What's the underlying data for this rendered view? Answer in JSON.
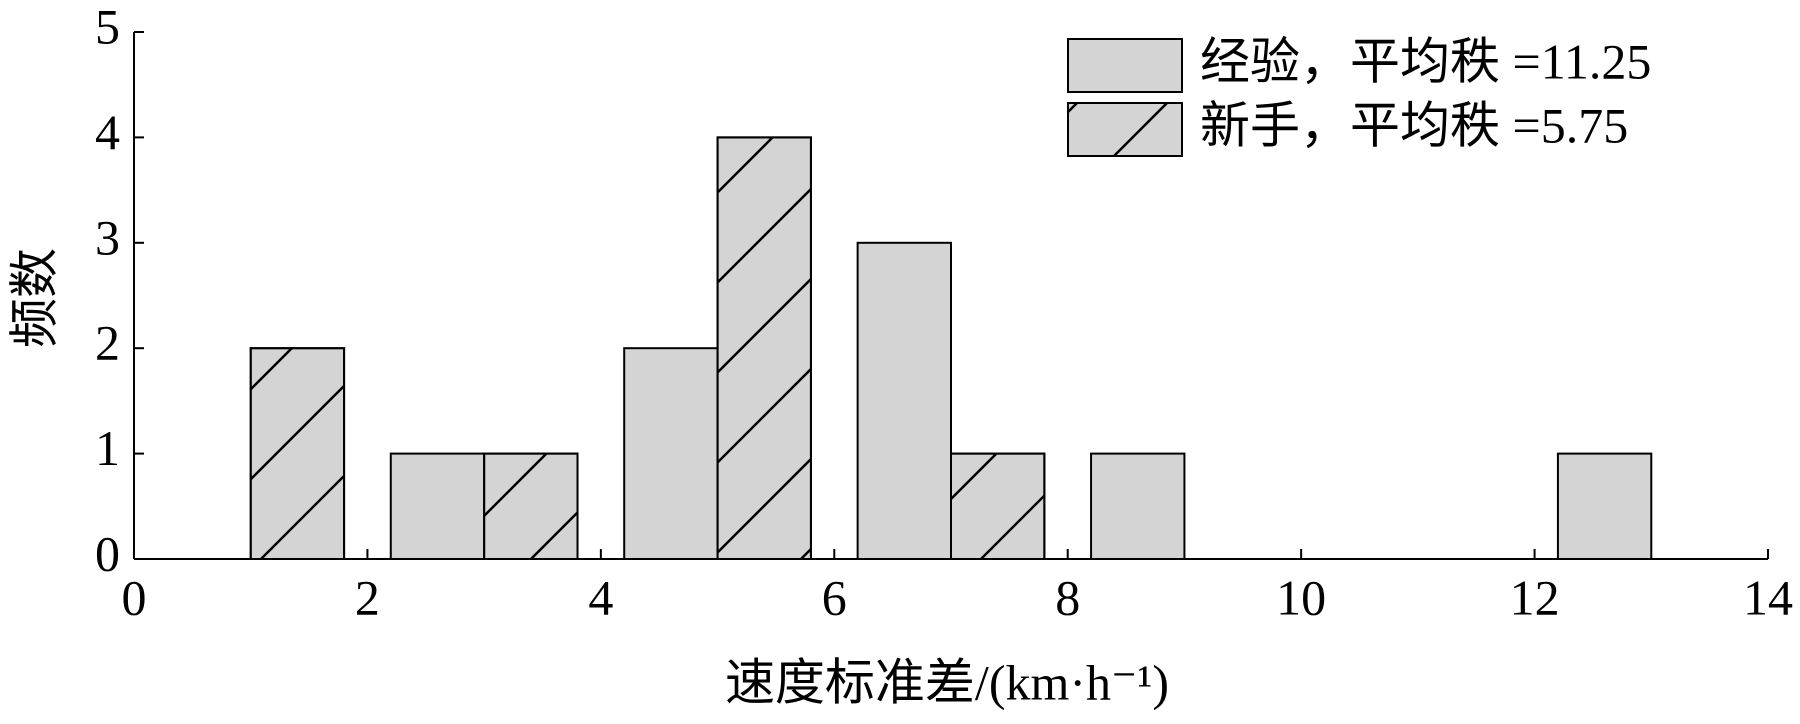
{
  "chart_data": {
    "type": "bar",
    "xlabel": "速度标准差/(km·h⁻¹)",
    "ylabel": "频数",
    "series": [
      {
        "name": "经验，平均秩 =11.25",
        "color": "#d4d4d4",
        "hatch": false,
        "x": [
          2.6,
          4.6,
          6.6,
          8.6,
          12.6
        ],
        "values": [
          1,
          2,
          3,
          1,
          1
        ]
      },
      {
        "name": "新手，平均秩 =5.75",
        "color": "#d4d4d4",
        "hatch": true,
        "x": [
          1.4,
          3.4,
          5.4,
          7.4
        ],
        "values": [
          2,
          1,
          4,
          1
        ]
      }
    ],
    "xlim": [
      0,
      14
    ],
    "xticks": [
      0,
      2,
      4,
      6,
      8,
      10,
      12,
      14
    ],
    "ylim": [
      0,
      5
    ],
    "yticks": [
      0,
      1,
      2,
      3,
      4,
      5
    ],
    "legend": "upper right",
    "grid": false
  }
}
